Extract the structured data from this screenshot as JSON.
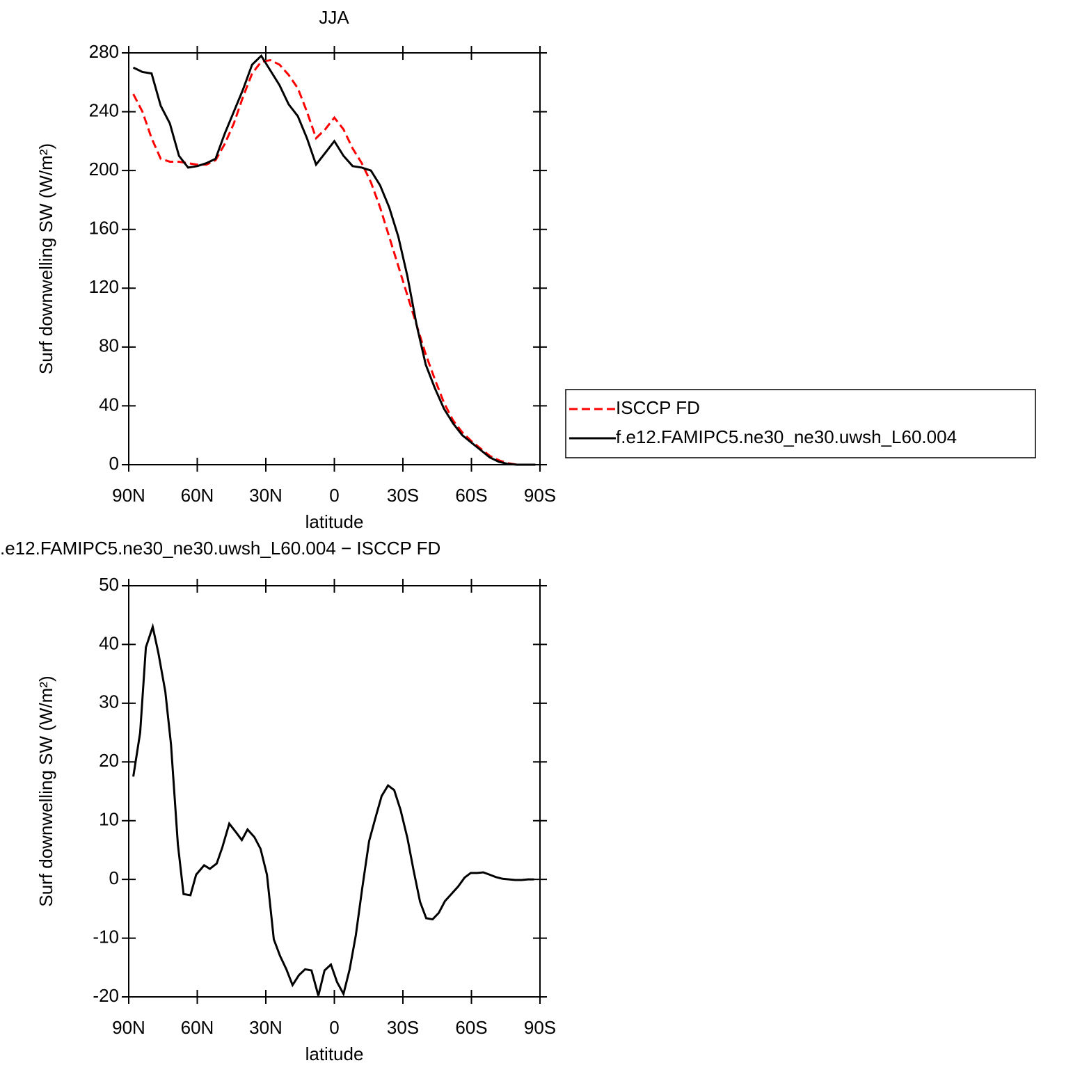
{
  "chart_data": [
    {
      "type": "line",
      "title": "JJA",
      "x_label": "latitude",
      "y_label": "Surf downwelling SW (W/m²)",
      "x": [
        88,
        84,
        80,
        76,
        72,
        68,
        64,
        60,
        56,
        52,
        48,
        44,
        40,
        36,
        32,
        28,
        24,
        20,
        16,
        12,
        8,
        4,
        0,
        -4,
        -8,
        -12,
        -16,
        -20,
        -24,
        -28,
        -32,
        -36,
        -40,
        -44,
        -48,
        -52,
        -56,
        -60,
        -64,
        -68,
        -72,
        -76,
        -80,
        -84,
        -88
      ],
      "series": [
        {
          "name": "ISCCP FD",
          "color": "#ff0000",
          "line_style": "dashed",
          "values": [
            252,
            240,
            222,
            208,
            206,
            206,
            205,
            204,
            204,
            207,
            218,
            232,
            250,
            266,
            274,
            275,
            272,
            265,
            256,
            240,
            222,
            228,
            236,
            228,
            215,
            205,
            192,
            175,
            155,
            135,
            115,
            95,
            75,
            58,
            42,
            30,
            22,
            16,
            11,
            6,
            3,
            1,
            0,
            0,
            0
          ]
        },
        {
          "name": "f.e12.FAMIPC5.ne30_ne30.uwsh_L60.004",
          "color": "#000000",
          "line_style": "solid",
          "values": [
            270,
            267,
            266,
            244,
            232,
            210,
            202,
            203,
            205,
            208,
            225,
            240,
            255,
            272,
            278,
            268,
            258,
            245,
            237,
            222,
            204,
            212,
            220,
            210,
            203,
            202,
            200,
            190,
            175,
            155,
            128,
            95,
            68,
            52,
            38,
            28,
            20,
            15,
            10,
            5,
            2,
            0.5,
            0,
            0,
            0
          ]
        }
      ],
      "xlim": [
        90,
        -90
      ],
      "xticks": [
        {
          "value": 90,
          "label": "90N"
        },
        {
          "value": 60,
          "label": "60N"
        },
        {
          "value": 30,
          "label": "30N"
        },
        0,
        {
          "value": -30,
          "label": "30S"
        },
        {
          "value": -60,
          "label": "60S"
        },
        {
          "value": -90,
          "label": "90S"
        }
      ],
      "ylim": [
        0,
        280
      ],
      "yticks": [
        0,
        40,
        80,
        120,
        160,
        200,
        240,
        280
      ],
      "legend": "right"
    },
    {
      "type": "line",
      "title": ".e12.FAMIPC5.ne30_ne30.uwsh_L60.004 − ISCCP FD",
      "x_label": "latitude",
      "y_label": "Surf downwelling SW (W/m²)",
      "x": [
        88,
        85,
        82.5,
        79.5,
        77,
        74,
        71.5,
        68.5,
        66,
        63,
        60.5,
        57,
        54.5,
        51.5,
        49,
        46,
        43,
        40.5,
        38,
        35,
        32.3,
        29.5,
        26.5,
        23.8,
        21,
        18.3,
        15.5,
        12.8,
        10,
        7,
        4.3,
        1.5,
        -1.2,
        -4,
        -6.7,
        -9.4,
        -12.2,
        -15.2,
        -18,
        -20.7,
        -23.5,
        -26.2,
        -29,
        -32,
        -34.7,
        -37.5,
        -40.2,
        -43,
        -45.7,
        -48.4,
        -51.2,
        -54.2,
        -57,
        -59.7,
        -62.5,
        -65.2,
        -68,
        -70.7,
        -73.7,
        -76.4,
        -79.2,
        -82,
        -84.7,
        -87.4
      ],
      "series": [
        {
          "color": "#000000",
          "line_style": "solid",
          "values": [
            17.5,
            25,
            39.5,
            43,
            38.5,
            32,
            23,
            6,
            -2.5,
            -2.7,
            0.8,
            2.4,
            1.8,
            2.7,
            5.5,
            9.5,
            8,
            6.7,
            8.5,
            7.2,
            5.2,
            0.8,
            -10.2,
            -13,
            -15.3,
            -18,
            -16.3,
            -15.3,
            -15.5,
            -19.8,
            -15.5,
            -14.5,
            -17.5,
            -19.5,
            -15.3,
            -9.5,
            -1.5,
            6.5,
            10.5,
            14.2,
            16,
            15.2,
            11.8,
            7,
            1.5,
            -3.8,
            -6.6,
            -6.8,
            -5.7,
            -3.7,
            -2.5,
            -1.2,
            0.3,
            1.1,
            1.1,
            1.2,
            0.8,
            0.4,
            0.1,
            0,
            -0.1,
            -0.1,
            0,
            0
          ]
        }
      ],
      "xlim": [
        90,
        -90
      ],
      "xticks": [
        {
          "value": 90,
          "label": "90N"
        },
        {
          "value": 60,
          "label": "60N"
        },
        {
          "value": 30,
          "label": "30N"
        },
        0,
        {
          "value": -30,
          "label": "30S"
        },
        {
          "value": -60,
          "label": "60S"
        },
        {
          "value": -90,
          "label": "90S"
        }
      ],
      "ylim": [
        -20,
        50
      ],
      "yticks": [
        -20,
        -10,
        0,
        10,
        20,
        30,
        40,
        50
      ]
    }
  ]
}
